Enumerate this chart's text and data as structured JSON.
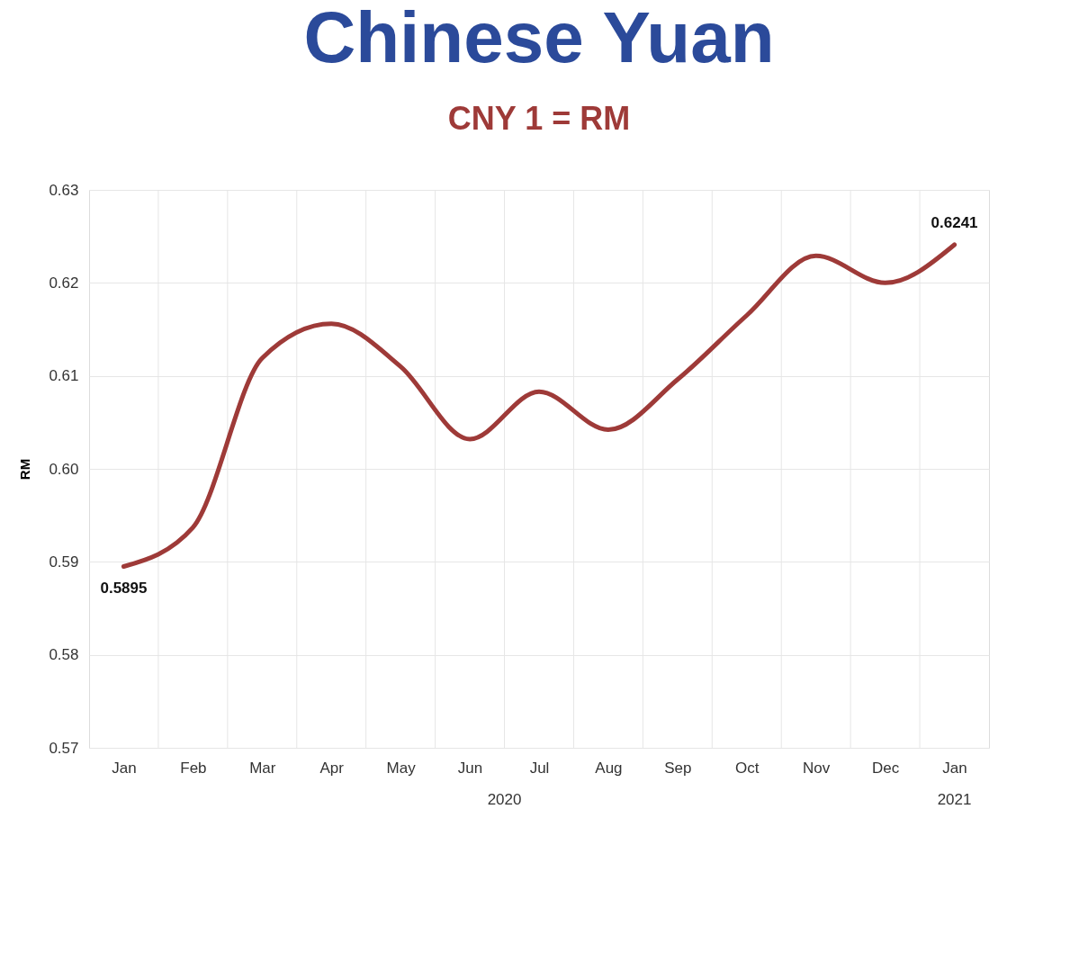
{
  "chart_data": {
    "type": "line",
    "title": "Chinese Yuan",
    "subtitle": "CNY 1 = RM",
    "ylabel": "RM",
    "categories": [
      "Jan",
      "Feb",
      "Mar",
      "Apr",
      "May",
      "Jun",
      "Jul",
      "Aug",
      "Sep",
      "Oct",
      "Nov",
      "Dec",
      "Jan"
    ],
    "series": [
      {
        "color": "#9e3a38",
        "values": [
          0.5895,
          0.5937,
          0.6119,
          0.6156,
          0.611,
          0.6032,
          0.6083,
          0.6042,
          0.6096,
          0.6165,
          0.6229,
          0.62,
          0.6241
        ],
        "value_labels": [
          "0.5895",
          null,
          null,
          null,
          null,
          null,
          null,
          null,
          null,
          null,
          null,
          null,
          "0.6241"
        ]
      }
    ],
    "ylim": [
      0.57,
      0.63
    ],
    "yticks": [
      {
        "value": 0.57,
        "label": "0.57"
      },
      {
        "value": 0.58,
        "label": "0.58"
      },
      {
        "value": 0.59,
        "label": "0.59"
      },
      {
        "value": 0.6,
        "label": "0.60"
      },
      {
        "value": 0.61,
        "label": "0.61"
      },
      {
        "value": 0.62,
        "label": "0.62"
      },
      {
        "value": 0.63,
        "label": "0.63"
      }
    ],
    "annotations": [
      "2020",
      "2021"
    ],
    "grid": true,
    "marker": "none",
    "line_style": "solid"
  }
}
